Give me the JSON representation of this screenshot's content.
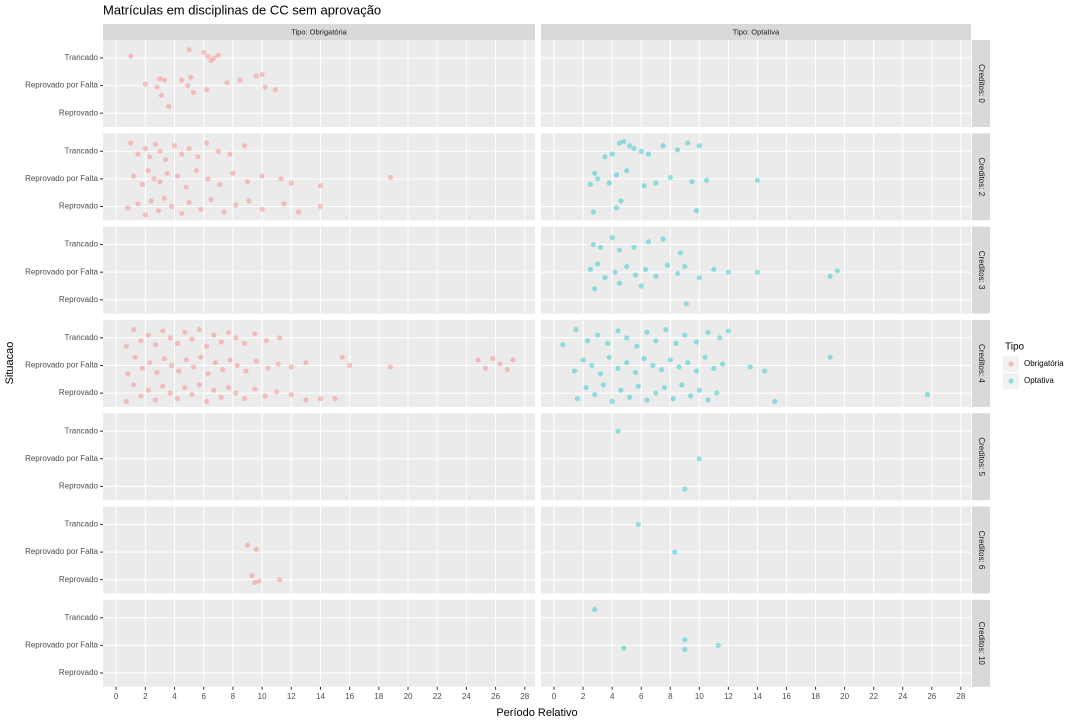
{
  "chart_data": {
    "type": "scatter",
    "title": "Matrículas em disciplinas de CC sem aprovação",
    "xlabel": "Período Relativo",
    "ylabel": "Situacao",
    "columns": [
      "Tipo: Obrigatória",
      "Tipo: Optativa"
    ],
    "rows": [
      "Creditos: 0",
      "Creditos: 2",
      "Creditos: 3",
      "Creditos: 4",
      "Creditos: 5",
      "Creditos: 6",
      "Creditos: 10"
    ],
    "xlim": [
      -0.9,
      28.7
    ],
    "xticks": [
      0,
      2,
      4,
      6,
      8,
      10,
      12,
      14,
      16,
      18,
      20,
      22,
      24,
      26,
      28
    ],
    "ylim": [
      0.5,
      3.65
    ],
    "yticks": [
      {
        "value": 1,
        "label": "Reprovado"
      },
      {
        "value": 2,
        "label": "Reprovado por Falta"
      },
      {
        "value": 3,
        "label": "Trancado"
      }
    ],
    "grid": true,
    "legend_title": "Tipo",
    "series": [
      {
        "name": "Obrigatória",
        "color": "#F8766D",
        "panels": [
          {
            "x": [
              1,
              5,
              6,
              6.3,
              6.7,
              7,
              6.5,
              3,
              3.3,
              2,
              2.8,
              4.5,
              5.1,
              7.6,
              8.5,
              9.6,
              10,
              10.2,
              10.9,
              5.3,
              3.6,
              3.1,
              4.9,
              6.2
            ],
            "y": [
              3.07,
              3.3,
              3.2,
              3.05,
              3.0,
              3.1,
              2.9,
              2.25,
              2.2,
              2.05,
              1.95,
              2.2,
              2.3,
              2.1,
              2.2,
              2.35,
              2.4,
              1.95,
              1.85,
              1.75,
              1.25,
              1.65,
              2.0,
              1.85
            ]
          },
          {
            "x": [
              1,
              1.5,
              2,
              2.3,
              2.7,
              3,
              3.4,
              4,
              4.5,
              5,
              5.6,
              6.2,
              7,
              7.8,
              8.8,
              1.2,
              1.8,
              2.2,
              2.6,
              3.0,
              3.5,
              4.2,
              4.8,
              5.5,
              6.3,
              7.1,
              8,
              9,
              10,
              11.3,
              12,
              14,
              18.8,
              0.8,
              1.5,
              2,
              2.4,
              2.9,
              3.3,
              3.8,
              4.5,
              5,
              5.8,
              6.5,
              7.4,
              8.2,
              9.1,
              10,
              11.5,
              12.5,
              14
            ],
            "y": [
              3.3,
              2.9,
              3.1,
              2.8,
              3.25,
              3.0,
              2.7,
              3.2,
              2.9,
              3.1,
              2.8,
              3.3,
              3.0,
              2.9,
              3.2,
              2.1,
              1.8,
              2.3,
              2.0,
              1.9,
              2.2,
              2.1,
              1.7,
              2.3,
              2.0,
              1.8,
              2.2,
              1.9,
              2.1,
              2.0,
              1.85,
              1.75,
              2.05,
              0.95,
              1.1,
              0.7,
              1.2,
              0.85,
              1.3,
              1.0,
              0.75,
              1.15,
              0.9,
              1.25,
              0.8,
              1.05,
              1.2,
              0.9,
              1.1,
              0.8,
              1.0
            ]
          },
          {
            "x": [],
            "y": []
          },
          {
            "x": [
              0.7,
              1.2,
              1.7,
              2.2,
              2.7,
              3.2,
              3.7,
              4.2,
              4.7,
              5.2,
              5.7,
              6.2,
              6.7,
              7.2,
              7.7,
              8.2,
              8.8,
              9.5,
              10.3,
              11.2,
              0.8,
              1.3,
              1.8,
              2.3,
              2.8,
              3.3,
              3.8,
              4.3,
              4.8,
              5.3,
              5.8,
              6.3,
              6.8,
              7.3,
              7.8,
              8.3,
              8.9,
              9.6,
              10.4,
              11.1,
              12,
              13,
              15.5,
              16,
              18.8,
              24.8,
              25.3,
              25.8,
              26.3,
              26.8,
              27.2,
              0.7,
              1.2,
              1.7,
              2.2,
              2.7,
              3.2,
              3.7,
              4.2,
              4.7,
              5.2,
              5.7,
              6.2,
              6.7,
              7.2,
              7.7,
              8.2,
              8.8,
              9.5,
              10.2,
              11,
              12,
              13,
              14,
              15
            ],
            "y": [
              2.7,
              3.3,
              2.9,
              3.1,
              2.75,
              3.25,
              3.0,
              2.8,
              3.2,
              2.95,
              3.3,
              2.7,
              3.1,
              2.85,
              3.2,
              3.0,
              2.8,
              3.15,
              2.9,
              3.0,
              1.7,
              2.3,
              1.9,
              2.1,
              1.75,
              2.25,
              2.0,
              1.8,
              2.2,
              1.95,
              2.3,
              1.7,
              2.1,
              1.85,
              2.2,
              2.0,
              1.8,
              2.15,
              1.9,
              2.05,
              1.95,
              2.1,
              2.3,
              2.0,
              1.95,
              2.2,
              1.9,
              2.25,
              2.05,
              1.85,
              2.2,
              0.7,
              1.3,
              0.9,
              1.1,
              0.75,
              1.25,
              1.0,
              0.8,
              1.2,
              0.95,
              1.3,
              0.7,
              1.1,
              0.85,
              1.2,
              1.0,
              0.8,
              1.15,
              0.9,
              1.05,
              0.95,
              0.75,
              0.8,
              0.8
            ]
          },
          {
            "x": [],
            "y": []
          },
          {
            "x": [
              9,
              9.6,
              9.3,
              9.5,
              9.8,
              11.2
            ],
            "y": [
              2.25,
              2.1,
              1.15,
              0.9,
              0.95,
              1.0
            ]
          },
          {
            "x": [],
            "y": []
          }
        ]
      },
      {
        "name": "Optativa",
        "color": "#00BFC4",
        "panels": [
          {
            "x": [],
            "y": []
          },
          {
            "x": [
              4.5,
              4.8,
              5.5,
              6,
              6.5,
              3.5,
              4,
              5.2,
              7.5,
              8.5,
              9.2,
              10,
              2.8,
              3,
              4.3,
              5,
              6.2,
              7,
              8,
              9.5,
              10.5,
              14,
              2.5,
              3.8,
              4.6,
              9.8,
              2.7,
              4.3
            ],
            "y": [
              3.3,
              3.35,
              3.1,
              3.0,
              2.9,
              2.8,
              2.9,
              3.2,
              3.2,
              3.05,
              3.3,
              3.2,
              2.2,
              2.0,
              2.15,
              2.3,
              1.75,
              1.85,
              2.05,
              1.9,
              1.95,
              1.95,
              1.8,
              1.85,
              1.2,
              0.85,
              0.8,
              0.95
            ]
          },
          {
            "x": [
              2.7,
              4,
              4.5,
              5.5,
              6.5,
              7.5,
              3.2,
              8.7,
              2.5,
              3,
              3.5,
              4.2,
              5,
              5.6,
              6.3,
              7,
              7.8,
              8.5,
              9,
              10,
              11,
              12,
              14,
              19,
              19.5,
              2.8,
              4.5,
              6,
              9.1
            ],
            "y": [
              3.0,
              3.25,
              2.8,
              2.9,
              3.1,
              3.2,
              2.9,
              2.7,
              2.1,
              2.3,
              1.8,
              2.0,
              2.2,
              1.9,
              2.1,
              1.85,
              2.25,
              1.95,
              2.2,
              1.8,
              2.1,
              2.0,
              2.0,
              1.85,
              2.05,
              1.4,
              1.6,
              1.5,
              0.85
            ]
          },
          {
            "x": [
              0.6,
              1.5,
              2.3,
              3,
              3.7,
              4.4,
              5,
              5.7,
              6.4,
              7,
              7.7,
              8.4,
              9,
              9.8,
              10.6,
              11.4,
              12,
              1.4,
              2,
              2.6,
              3.2,
              3.8,
              4.4,
              5,
              5.6,
              6.2,
              6.8,
              7.4,
              8,
              8.6,
              9.2,
              9.8,
              10.4,
              11,
              11.6,
              13.5,
              14.5,
              19,
              1.6,
              2.2,
              2.8,
              3.4,
              4,
              4.6,
              5.2,
              5.8,
              6.4,
              7,
              7.6,
              8.2,
              8.8,
              9.4,
              10,
              10.6,
              11.2,
              15.2,
              25.7
            ],
            "y": [
              2.75,
              3.3,
              2.9,
              3.1,
              2.8,
              3.25,
              3.0,
              2.7,
              3.2,
              2.9,
              3.3,
              2.8,
              3.1,
              2.85,
              3.2,
              3.0,
              3.25,
              1.8,
              2.2,
              2.0,
              1.7,
              2.3,
              1.9,
              2.1,
              1.75,
              2.25,
              2.0,
              1.85,
              2.2,
              1.95,
              2.1,
              1.8,
              2.3,
              1.9,
              2.05,
              1.95,
              1.8,
              2.3,
              0.8,
              1.2,
              0.95,
              1.3,
              0.7,
              1.1,
              0.85,
              1.25,
              0.75,
              1.0,
              1.2,
              0.8,
              1.3,
              0.9,
              1.1,
              0.75,
              1.0,
              0.7,
              0.95
            ]
          },
          {
            "x": [
              4.4,
              10,
              9
            ],
            "y": [
              3.0,
              2.0,
              0.9
            ]
          },
          {
            "x": [
              5.8,
              8.3
            ],
            "y": [
              3.0,
              2.0
            ]
          },
          {
            "x": [
              2.8,
              9,
              11.3,
              4.8,
              9
            ],
            "y": [
              3.3,
              2.2,
              2.0,
              1.9,
              1.85
            ]
          }
        ]
      }
    ]
  }
}
